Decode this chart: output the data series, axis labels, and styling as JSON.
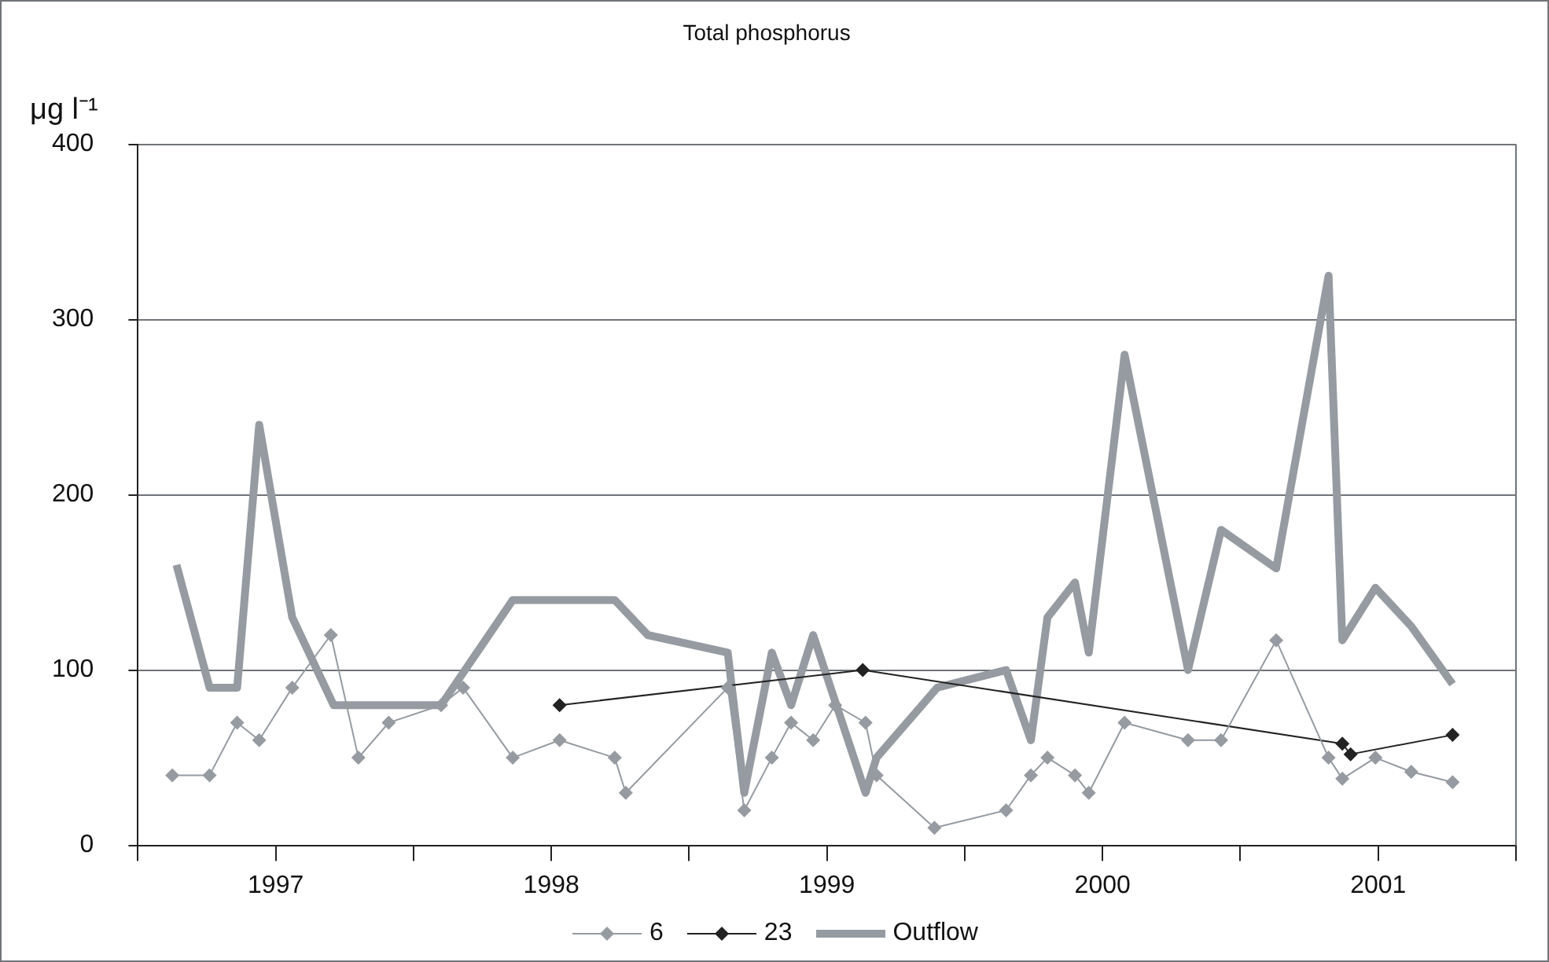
{
  "chart_data": {
    "type": "line",
    "title": "Total phosphorus",
    "ylabel": "μg l⁻¹",
    "xlim": [
      1996.5,
      2001.5
    ],
    "xticks": [
      {
        "value": 1996.5,
        "label": null
      },
      1997,
      {
        "value": 1997.5,
        "label": null
      },
      1998,
      {
        "value": 1998.5,
        "label": null
      },
      1999,
      {
        "value": 1999.5,
        "label": null
      },
      2000,
      {
        "value": 2000.5,
        "label": null
      },
      2001,
      {
        "value": 2001.5,
        "label": null
      }
    ],
    "ylim": [
      0,
      400
    ],
    "yticks": [
      0,
      100,
      200,
      300,
      400
    ],
    "grid": "y",
    "legend": "bottom",
    "line_style": "solid",
    "series": [
      {
        "name": "6",
        "color": "#959ba1",
        "marker": "diamond",
        "x": [
          1996.625,
          1996.76,
          1996.86,
          1996.94,
          1997.06,
          1997.2,
          1997.3,
          1997.41,
          1997.6,
          1997.68,
          1997.86,
          1998.03,
          1998.23,
          1998.27,
          1998.64,
          1998.7,
          1998.8,
          1998.87,
          1998.95,
          1999.03,
          1999.14,
          1999.18,
          1999.39,
          1999.65,
          1999.74,
          1999.8,
          1999.9,
          1999.95,
          2000.08,
          2000.31,
          2000.43,
          2000.63,
          2000.82,
          2000.87,
          2000.99,
          2001.12,
          2001.27
        ],
        "values": [
          40,
          40,
          70,
          60,
          90,
          120,
          50,
          70,
          80,
          90,
          50,
          60,
          50,
          30,
          90,
          20,
          50,
          70,
          60,
          80,
          70,
          40,
          10,
          20,
          40,
          50,
          40,
          30,
          70,
          60,
          60,
          117,
          50,
          38,
          50,
          42,
          36
        ]
      },
      {
        "name": "23",
        "color": "#222222",
        "marker": "diamond",
        "x": [
          1998.03,
          1999.13,
          2000.87,
          2000.9,
          2001.27
        ],
        "values": [
          80,
          100,
          58,
          52,
          63
        ]
      },
      {
        "name": "Outflow",
        "color": "#959ba1",
        "marker": "none",
        "x": [
          1996.64,
          1996.76,
          1996.86,
          1996.94,
          1997.06,
          1997.21,
          1997.6,
          1997.86,
          1998.23,
          1998.35,
          1998.64,
          1998.7,
          1998.8,
          1998.87,
          1998.95,
          1999.14,
          1999.18,
          1999.4,
          1999.65,
          1999.74,
          1999.8,
          1999.9,
          1999.95,
          2000.08,
          2000.31,
          2000.43,
          2000.63,
          2000.82,
          2000.87,
          2000.99,
          2001.12,
          2001.27
        ],
        "values": [
          160,
          90,
          90,
          240,
          130,
          80,
          80,
          140,
          140,
          120,
          110,
          30,
          110,
          80,
          120,
          30,
          50,
          90,
          100,
          60,
          130,
          150,
          110,
          280,
          100,
          180,
          158,
          325,
          117,
          147,
          125,
          92
        ]
      }
    ]
  }
}
